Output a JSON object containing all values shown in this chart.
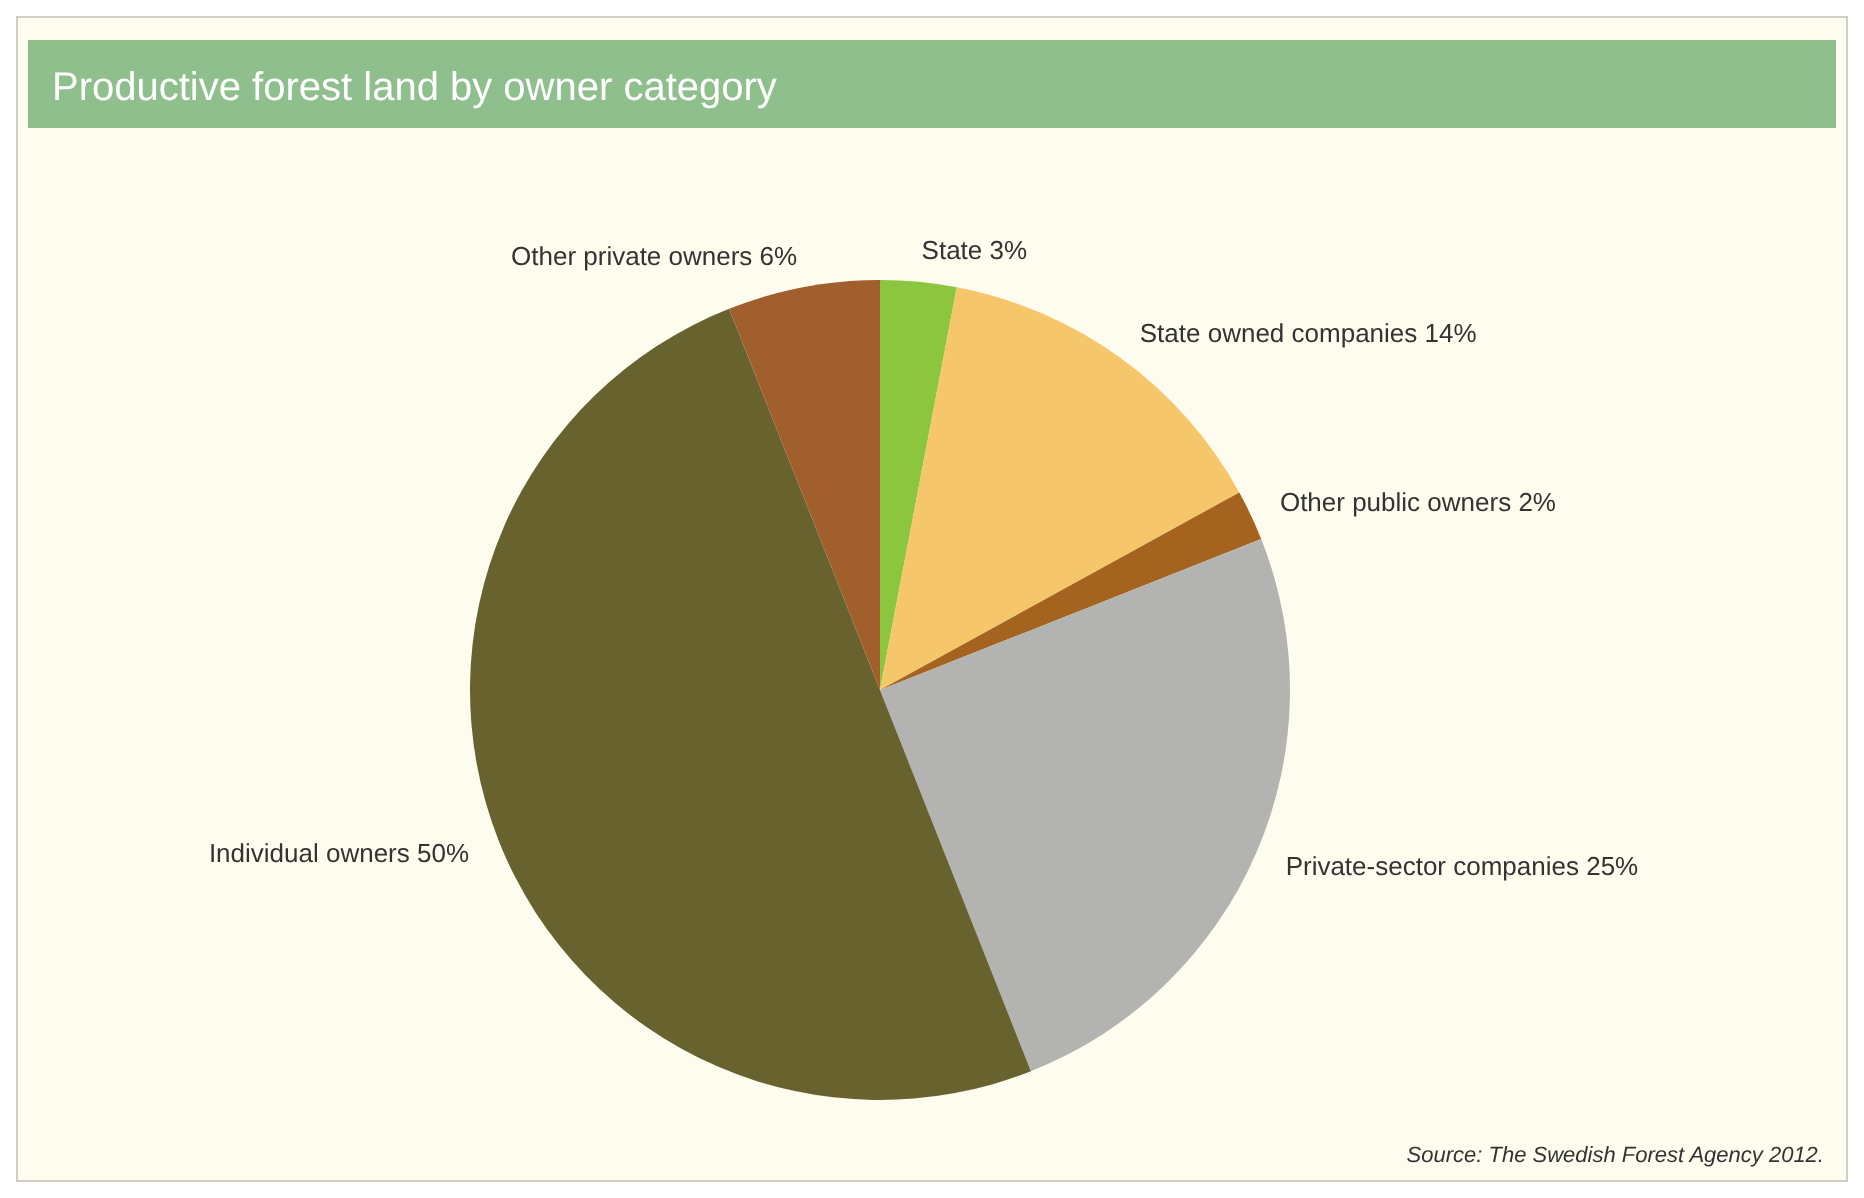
{
  "chart_data": {
    "type": "pie",
    "title": "Productive forest land by owner category",
    "categories": [
      "State",
      "State owned companies",
      "Other public owners",
      "Private-sector companies",
      "Individual owners",
      "Other private owners"
    ],
    "values": [
      3,
      14,
      2,
      25,
      50,
      6
    ],
    "value_labels": [
      "3%",
      "14%",
      "2%",
      "25%",
      "50%",
      "6%"
    ],
    "colors": [
      "#8cc63e",
      "#f5c76a",
      "#a4641f",
      "#b3b3b1",
      "#68622f",
      "#a15f2e"
    ],
    "annotations": [
      "Source: The Swedish Forest Agency 2012."
    ]
  }
}
